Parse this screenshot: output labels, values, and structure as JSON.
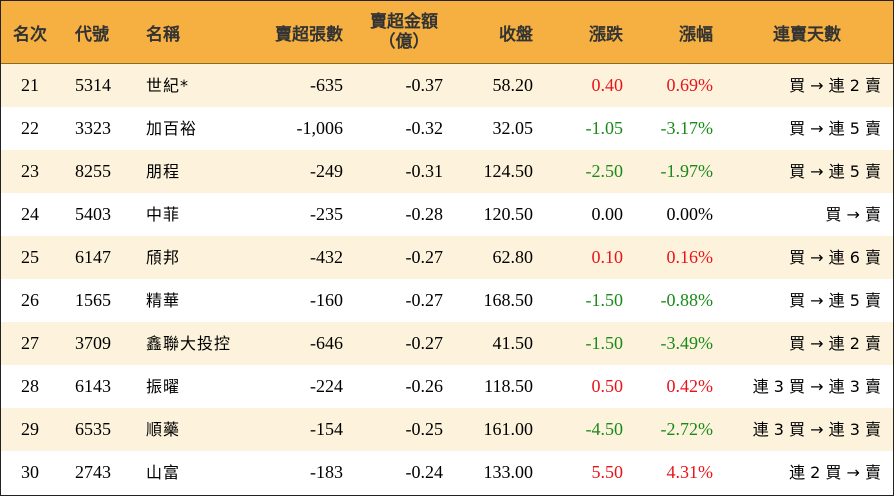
{
  "chart_data": {
    "type": "table",
    "columns": [
      "名次",
      "代號",
      "名稱",
      "賣超張數",
      "賣超金額(億)",
      "收盤",
      "漲跌",
      "漲幅",
      "連賣天數"
    ],
    "header": {
      "rank": "名次",
      "code": "代號",
      "name": "名稱",
      "net_sell_lots": "賣超張數",
      "net_sell_amount_line1": "賣超金額",
      "net_sell_amount_line2": "（億）",
      "close": "收盤",
      "change": "漲跌",
      "change_pct": "漲幅",
      "streak": "連賣天數"
    },
    "rows": [
      {
        "rank": "21",
        "code": "5314",
        "name": "世紀*",
        "lots": "-635",
        "amount": "-0.37",
        "close": "58.20",
        "change": "0.40",
        "pct": "0.69%",
        "dir": "up",
        "streak": "買 → 連 2 賣"
      },
      {
        "rank": "22",
        "code": "3323",
        "name": "加百裕",
        "lots": "-1,006",
        "amount": "-0.32",
        "close": "32.05",
        "change": "-1.05",
        "pct": "-3.17%",
        "dir": "down",
        "streak": "買 → 連 5 賣"
      },
      {
        "rank": "23",
        "code": "8255",
        "name": "朋程",
        "lots": "-249",
        "amount": "-0.31",
        "close": "124.50",
        "change": "-2.50",
        "pct": "-1.97%",
        "dir": "down",
        "streak": "買 → 連 5 賣"
      },
      {
        "rank": "24",
        "code": "5403",
        "name": "中菲",
        "lots": "-235",
        "amount": "-0.28",
        "close": "120.50",
        "change": "0.00",
        "pct": "0.00%",
        "dir": "flat",
        "streak": "買 → 賣"
      },
      {
        "rank": "25",
        "code": "6147",
        "name": "頎邦",
        "lots": "-432",
        "amount": "-0.27",
        "close": "62.80",
        "change": "0.10",
        "pct": "0.16%",
        "dir": "up",
        "streak": "買 → 連 6 賣"
      },
      {
        "rank": "26",
        "code": "1565",
        "name": "精華",
        "lots": "-160",
        "amount": "-0.27",
        "close": "168.50",
        "change": "-1.50",
        "pct": "-0.88%",
        "dir": "down",
        "streak": "買 → 連 5 賣"
      },
      {
        "rank": "27",
        "code": "3709",
        "name": "鑫聯大投控",
        "lots": "-646",
        "amount": "-0.27",
        "close": "41.50",
        "change": "-1.50",
        "pct": "-3.49%",
        "dir": "down",
        "streak": "買 → 連 2 賣"
      },
      {
        "rank": "28",
        "code": "6143",
        "name": "振曜",
        "lots": "-224",
        "amount": "-0.26",
        "close": "118.50",
        "change": "0.50",
        "pct": "0.42%",
        "dir": "up",
        "streak": "連 3 買 → 連 3 賣"
      },
      {
        "rank": "29",
        "code": "6535",
        "name": "順藥",
        "lots": "-154",
        "amount": "-0.25",
        "close": "161.00",
        "change": "-4.50",
        "pct": "-2.72%",
        "dir": "down",
        "streak": "連 3 買 → 連 3 賣"
      },
      {
        "rank": "30",
        "code": "2743",
        "name": "山富",
        "lots": "-183",
        "amount": "-0.24",
        "close": "133.00",
        "change": "5.50",
        "pct": "4.31%",
        "dir": "up",
        "streak": "連 2 買 → 賣"
      }
    ]
  },
  "colors": {
    "header_bg": "#f5b041",
    "stripe_bg": "#fdf3dc",
    "up": "#e8141c",
    "down": "#1a8a1a"
  }
}
